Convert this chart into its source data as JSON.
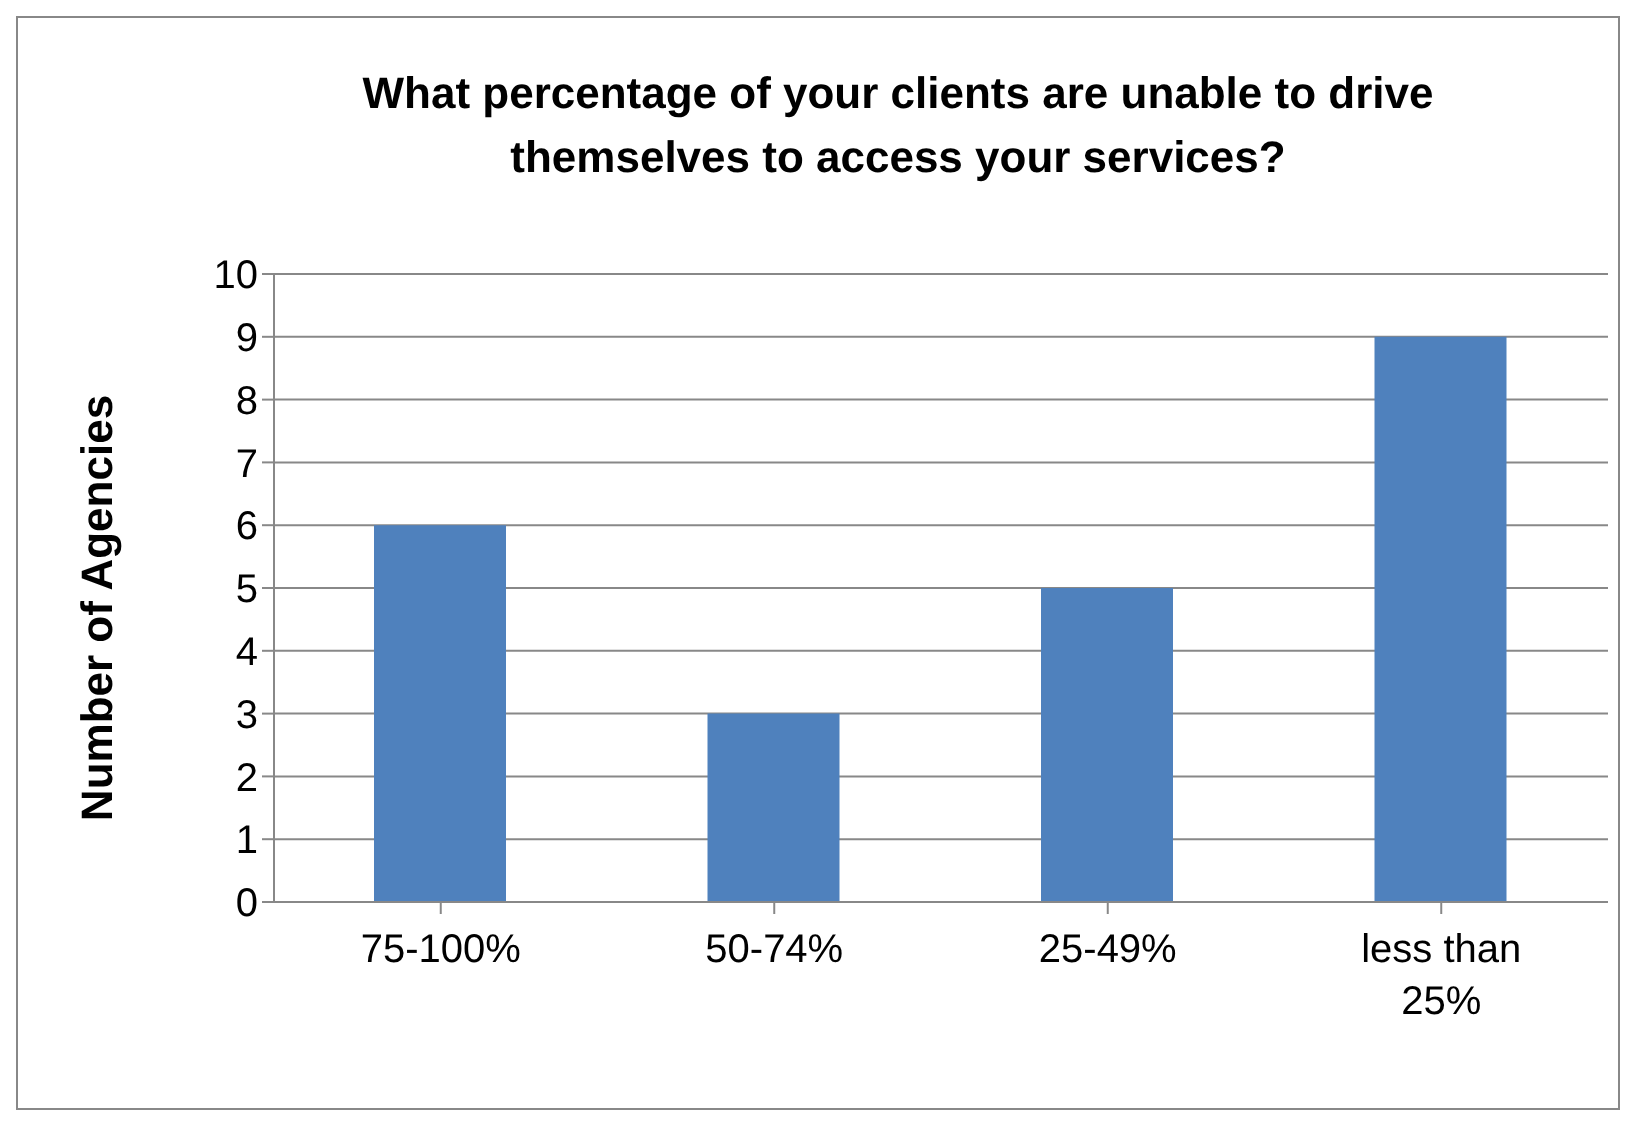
{
  "chart_data": {
    "type": "bar",
    "title": "What percentage of your clients are unable to drive themselves to access your services?",
    "ylabel": "Number of Agencies",
    "categories": [
      "75-100%",
      "50-74%",
      "25-49%",
      "less than 25%"
    ],
    "values": [
      6,
      3,
      5,
      9
    ],
    "color": "#4f81bd",
    "ylim": [
      0,
      10
    ],
    "yticks": [
      0,
      1,
      2,
      3,
      4,
      5,
      6,
      7,
      8,
      9,
      10
    ],
    "grid": "y"
  }
}
